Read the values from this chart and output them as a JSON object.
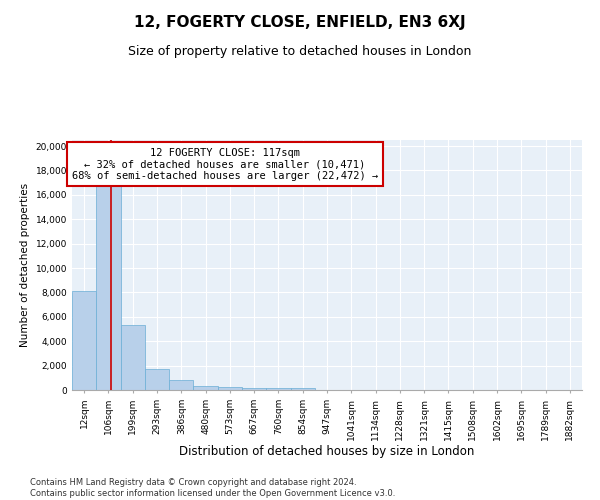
{
  "title": "12, FOGERTY CLOSE, ENFIELD, EN3 6XJ",
  "subtitle": "Size of property relative to detached houses in London",
  "xlabel": "Distribution of detached houses by size in London",
  "ylabel": "Number of detached properties",
  "categories": [
    "12sqm",
    "106sqm",
    "199sqm",
    "293sqm",
    "386sqm",
    "480sqm",
    "573sqm",
    "667sqm",
    "760sqm",
    "854sqm",
    "947sqm",
    "1041sqm",
    "1134sqm",
    "1228sqm",
    "1321sqm",
    "1415sqm",
    "1508sqm",
    "1602sqm",
    "1695sqm",
    "1789sqm",
    "1882sqm"
  ],
  "values": [
    8100,
    16700,
    5300,
    1750,
    800,
    350,
    280,
    200,
    200,
    150,
    0,
    0,
    0,
    0,
    0,
    0,
    0,
    0,
    0,
    0,
    0
  ],
  "bar_color": "#b8d0ea",
  "bar_edge_color": "#6aaed6",
  "vline_x": 1.12,
  "vline_color": "#cc0000",
  "annotation_text": "12 FOGERTY CLOSE: 117sqm\n← 32% of detached houses are smaller (10,471)\n68% of semi-detached houses are larger (22,472) →",
  "annotation_box_color": "#ffffff",
  "annotation_box_edge_color": "#cc0000",
  "ylim": [
    0,
    20500
  ],
  "yticks": [
    0,
    2000,
    4000,
    6000,
    8000,
    10000,
    12000,
    14000,
    16000,
    18000,
    20000
  ],
  "background_color": "#e8f0f8",
  "footer_text": "Contains HM Land Registry data © Crown copyright and database right 2024.\nContains public sector information licensed under the Open Government Licence v3.0.",
  "title_fontsize": 11,
  "subtitle_fontsize": 9,
  "xlabel_fontsize": 8.5,
  "ylabel_fontsize": 7.5,
  "tick_fontsize": 6.5,
  "annotation_fontsize": 7.5,
  "footer_fontsize": 6
}
